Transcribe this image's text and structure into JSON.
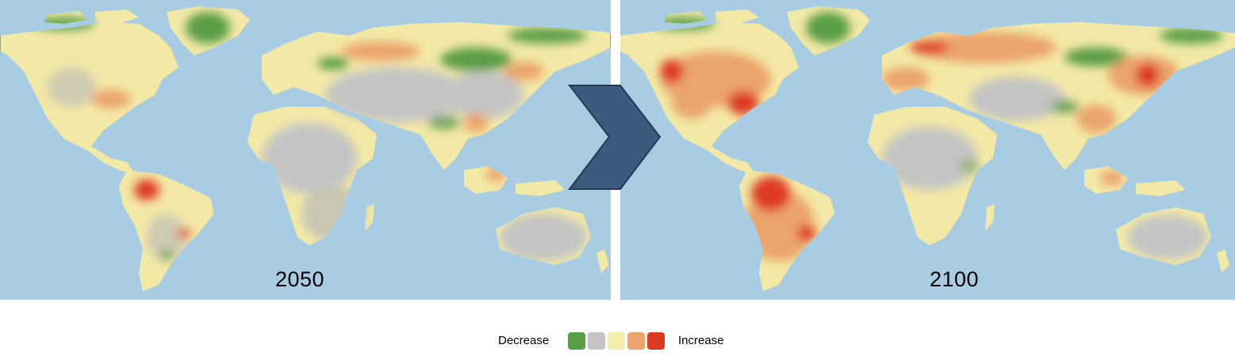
{
  "panels": [
    {
      "year": "2050"
    },
    {
      "year": "2100"
    }
  ],
  "legend": {
    "low_label": "Decrease",
    "high_label": "Increase",
    "colors": [
      "#5a9e47",
      "#c4c4c4",
      "#f4eeaa",
      "#eba46a",
      "#dd3a24"
    ]
  },
  "colors": {
    "ocean": "#a8cde2",
    "arrow": "#3a5a7e",
    "land_base": "#f3e9a6"
  }
}
